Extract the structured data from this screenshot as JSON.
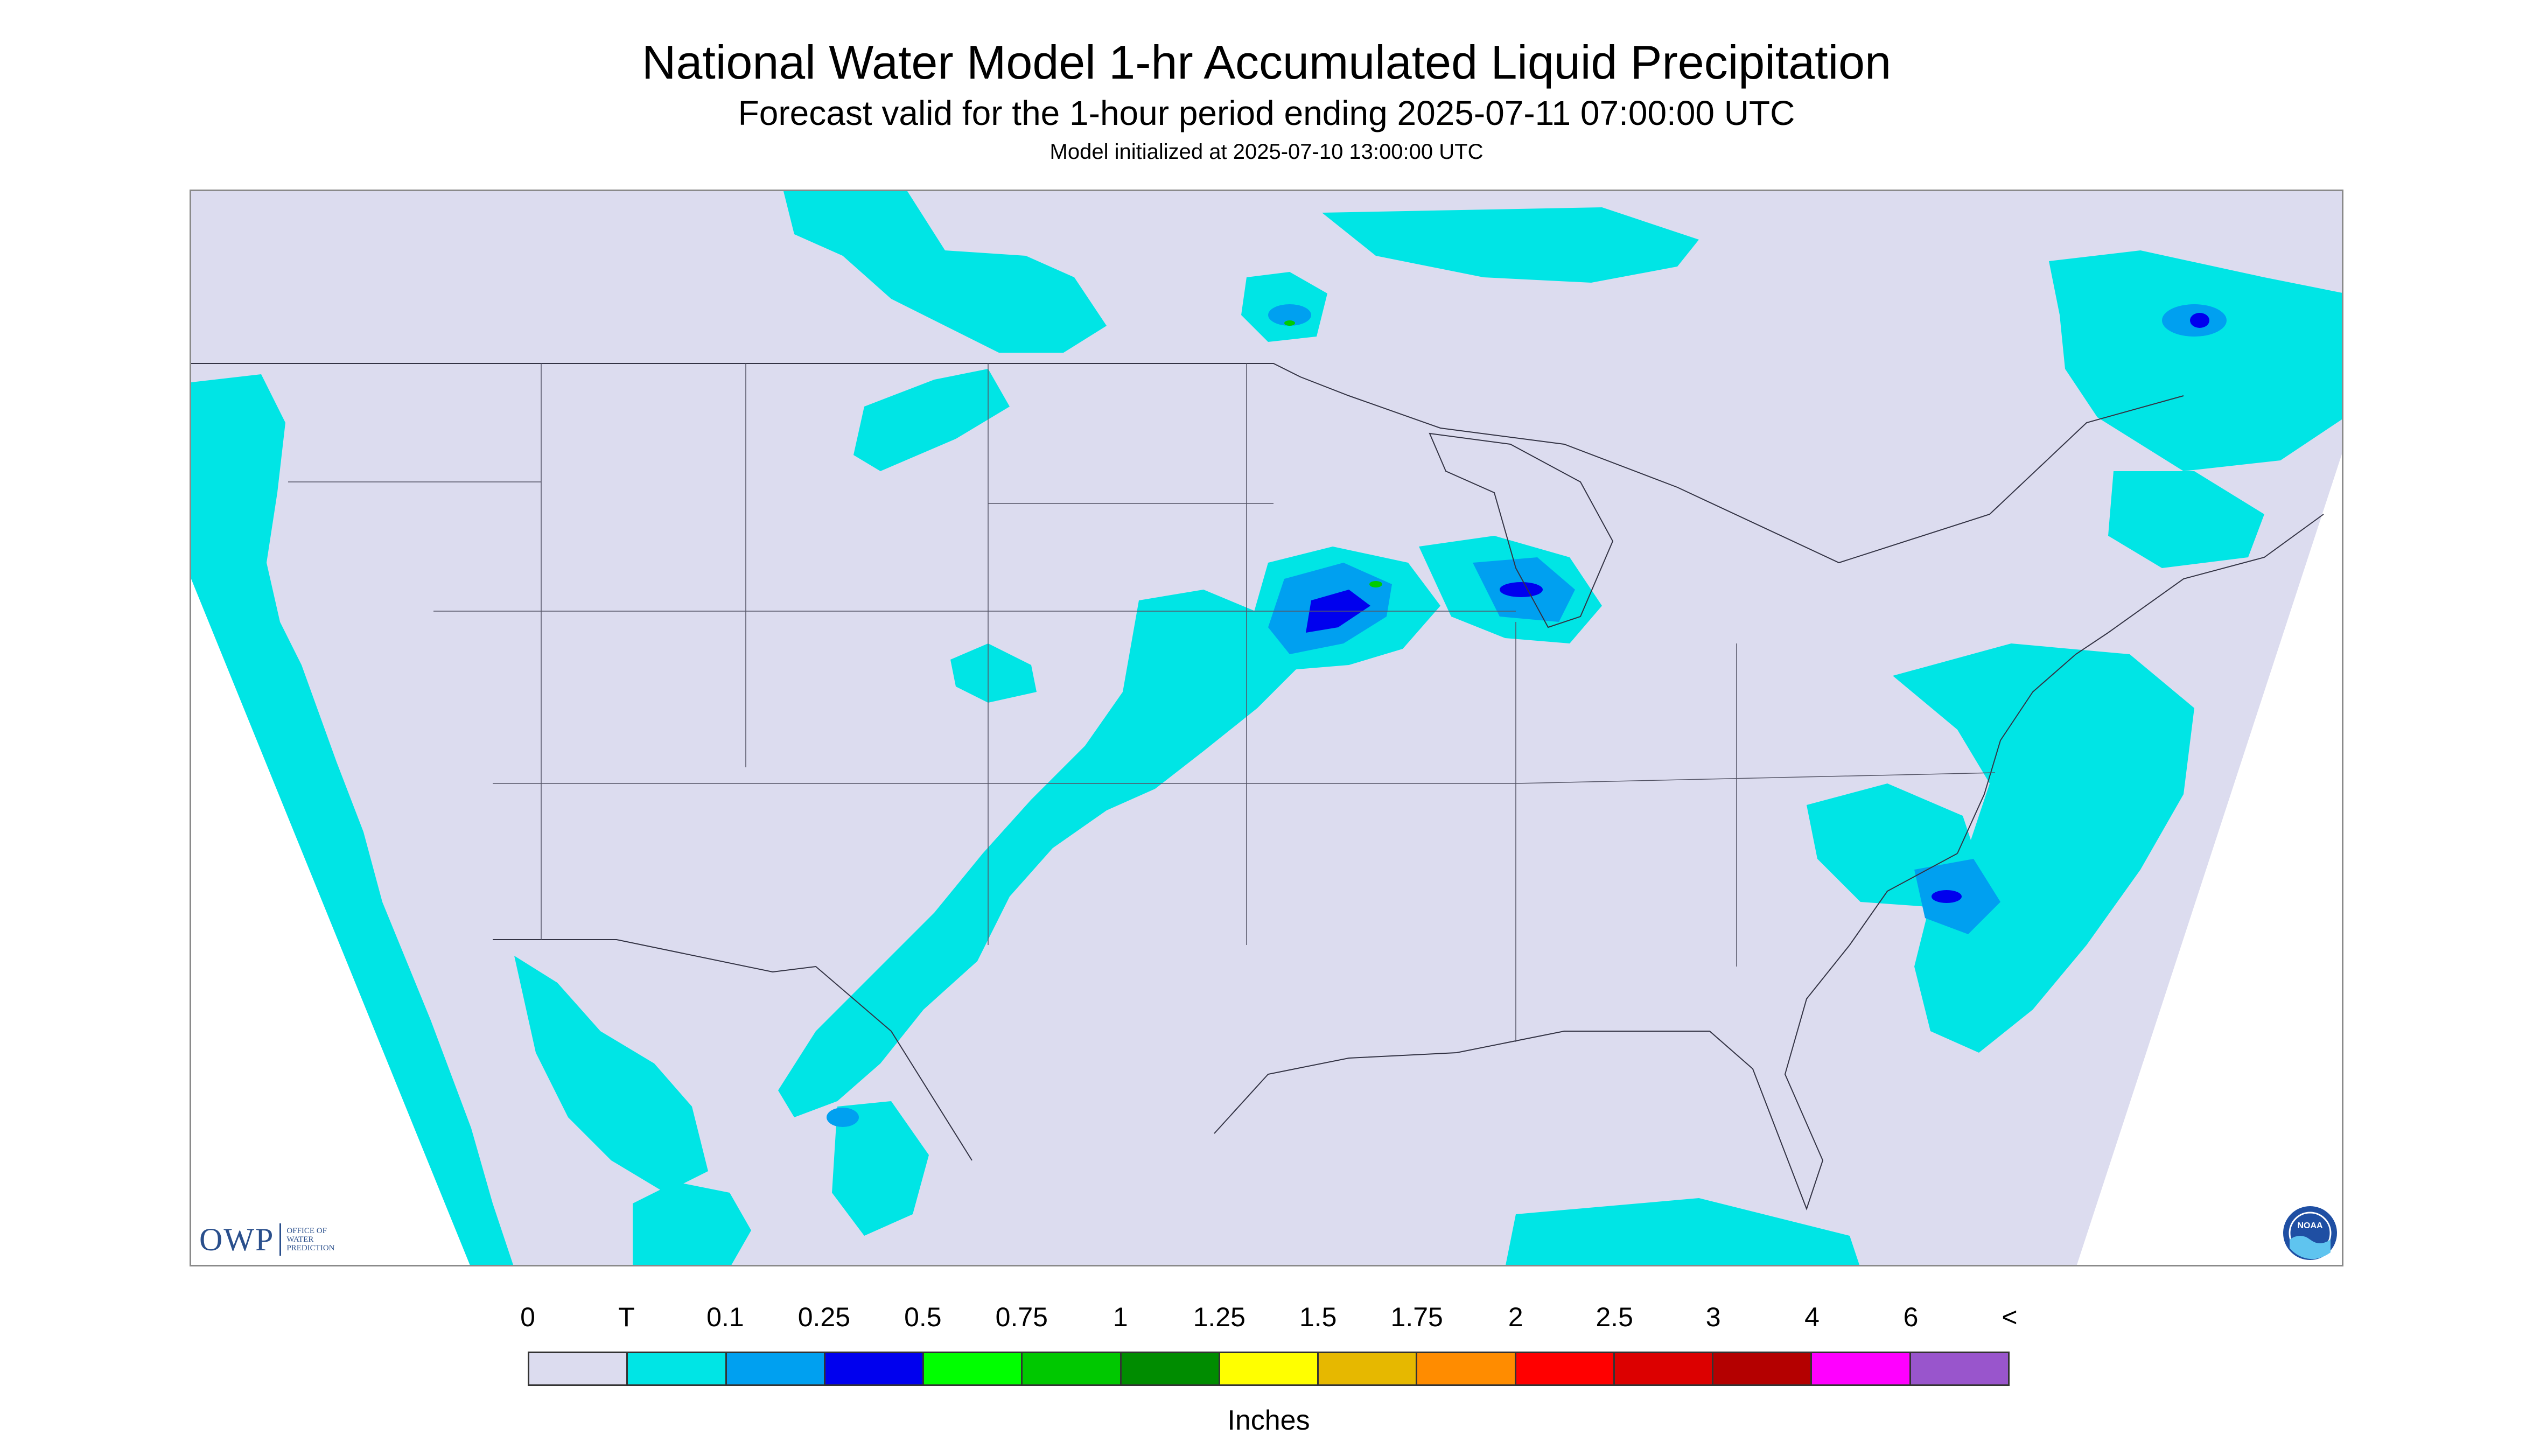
{
  "header": {
    "title": "National Water Model 1-hr Accumulated Liquid Precipitation",
    "subtitle": "Forecast valid for the 1-hour period ending 2025-07-11 07:00:00 UTC",
    "init": "Model initialized at 2025-07-10 13:00:00 UTC"
  },
  "logos": {
    "owp_main": "OWP",
    "owp_sub": [
      "OFFICE OF",
      "WATER",
      "PREDICTION"
    ],
    "noaa": "NOAA"
  },
  "map": {
    "domain_color": "#dcdcef",
    "precip_colors": {
      "trace": "#00e5e5",
      "light": "#00a0f0",
      "moderate": "#0000ee",
      "heavy": "#00cc00"
    }
  },
  "legend": {
    "labels": [
      "0",
      "T",
      "0.1",
      "0.25",
      "0.5",
      "0.75",
      "1",
      "1.25",
      "1.5",
      "1.75",
      "2",
      "2.5",
      "3",
      "4",
      "6",
      "<"
    ],
    "colors": [
      "#dcdcef",
      "#00e5e5",
      "#00a0f0",
      "#0000ee",
      "#00ff00",
      "#00c800",
      "#008c00",
      "#ffff00",
      "#e6b800",
      "#ff8c00",
      "#ff0000",
      "#dc0000",
      "#b40000",
      "#ff00ff",
      "#9955cc"
    ],
    "units": "Inches"
  }
}
